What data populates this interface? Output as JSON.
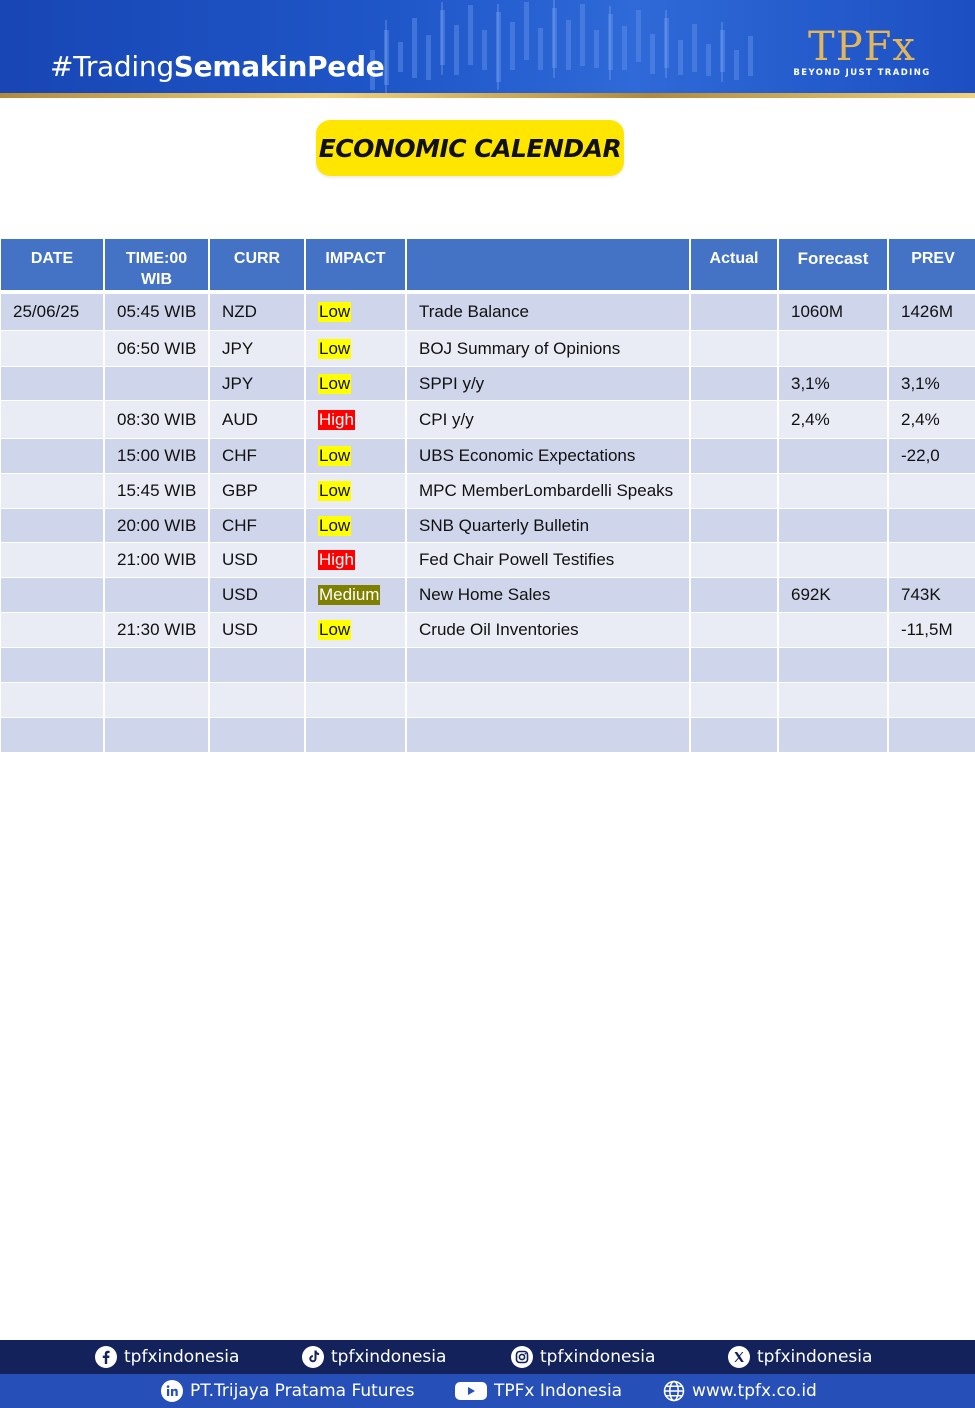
{
  "header": {
    "hashtag_prefix": "#Trading",
    "hashtag_bold": "SemakinPede",
    "logo_mark": "TPFx",
    "logo_tagline": "BEYOND JUST TRADING"
  },
  "title": "ECONOMIC CALENDAR",
  "table": {
    "columns": [
      "DATE",
      "TIME:00 WIB",
      "CURR",
      "IMPACT",
      "",
      "Actual",
      "Forecast",
      "PREV"
    ],
    "rows": [
      {
        "date": "25/06/25",
        "time": "05:45 WIB",
        "curr": "NZD",
        "impact": "Low",
        "event": "Trade Balance",
        "actual": "",
        "forecast": "1060M",
        "prev": "1426M"
      },
      {
        "date": "",
        "time": "06:50 WIB",
        "curr": "JPY",
        "impact": "Low",
        "event": "BOJ Summary of Opinions",
        "actual": "",
        "forecast": "",
        "prev": ""
      },
      {
        "date": "",
        "time": "",
        "curr": "JPY",
        "impact": "Low",
        "event": "SPPI y/y",
        "actual": "",
        "forecast": "3,1%",
        "prev": "3,1%"
      },
      {
        "date": "",
        "time": "08:30 WIB",
        "curr": "AUD",
        "impact": "High",
        "event": "CPI y/y",
        "actual": "",
        "forecast": "2,4%",
        "prev": "2,4%"
      },
      {
        "date": "",
        "time": "15:00 WIB",
        "curr": "CHF",
        "impact": "Low",
        "event": "UBS Economic Expectations",
        "actual": "",
        "forecast": "",
        "prev": "-22,0"
      },
      {
        "date": "",
        "time": "15:45 WIB",
        "curr": "GBP",
        "impact": "Low",
        "event": "MPC MemberLombardelli Speaks",
        "actual": "",
        "forecast": "",
        "prev": ""
      },
      {
        "date": "",
        "time": "20:00 WIB",
        "curr": "CHF",
        "impact": "Low",
        "event": "SNB Quarterly Bulletin",
        "actual": "",
        "forecast": "",
        "prev": ""
      },
      {
        "date": "",
        "time": "21:00 WIB",
        "curr": "USD",
        "impact": "High",
        "event": "Fed Chair Powell Testifies",
        "actual": "",
        "forecast": "",
        "prev": ""
      },
      {
        "date": "",
        "time": "",
        "curr": "USD",
        "impact": "Medium",
        "event": "New Home Sales",
        "actual": "",
        "forecast": "692K",
        "prev": "743K"
      },
      {
        "date": "",
        "time": "21:30 WIB",
        "curr": "USD",
        "impact": "Low",
        "event": "Crude Oil Inventories",
        "actual": "",
        "forecast": "",
        "prev": "-11,5M"
      },
      {
        "date": "",
        "time": "",
        "curr": "",
        "impact": "",
        "event": "",
        "actual": "",
        "forecast": "",
        "prev": ""
      },
      {
        "date": "",
        "time": "",
        "curr": "",
        "impact": "",
        "event": "",
        "actual": "",
        "forecast": "",
        "prev": ""
      },
      {
        "date": "",
        "time": "",
        "curr": "",
        "impact": "",
        "event": "",
        "actual": "",
        "forecast": "",
        "prev": ""
      }
    ]
  },
  "impact_colors": {
    "Low": "#ffff00",
    "High": "#ff0000",
    "Medium": "#808000"
  },
  "footer": {
    "row1": [
      {
        "icon": "facebook-icon",
        "label": "tpfxindonesia"
      },
      {
        "icon": "tiktok-icon",
        "label": "tpfxindonesia"
      },
      {
        "icon": "instagram-icon",
        "label": "tpfxindonesia"
      },
      {
        "icon": "x-icon",
        "label": "tpfxindonesia"
      }
    ],
    "row2": [
      {
        "icon": "linkedin-icon",
        "label": "PT.Trijaya Pratama Futures"
      },
      {
        "icon": "youtube-icon",
        "label": "TPFx Indonesia"
      },
      {
        "icon": "globe-icon",
        "label": "www.tpfx.co.id"
      }
    ]
  }
}
